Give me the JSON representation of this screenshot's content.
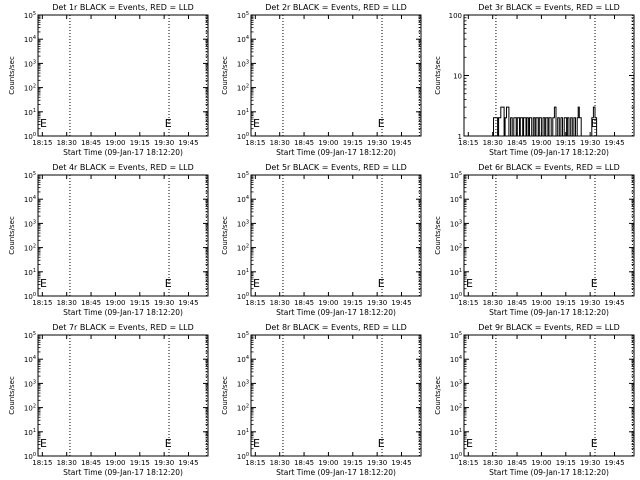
{
  "chart_data": [
    {
      "type": "line",
      "title": "Det 1r BLACK = Events, RED = LLD",
      "xlabel": "Start Time (09-Jan-17 18:12:20)",
      "ylabel": "Counts/sec",
      "yscale": "log",
      "xlim": [
        "18:12:20",
        "19:57:00"
      ],
      "ylim": [
        1,
        100000
      ],
      "x_ticks": [
        "18:15",
        "18:30",
        "18:45",
        "19:00",
        "19:15",
        "19:30",
        "19:45"
      ],
      "y_ticks": [
        "10^0",
        "10^1",
        "10^2",
        "10^3",
        "10^4",
        "10^5"
      ],
      "markers": [
        "18:12:20",
        "18:32:00",
        "19:33:00",
        "19:56:00"
      ],
      "annotations": [
        {
          "x": "19:32:30",
          "text": "E"
        },
        {
          "x": "18:12:40",
          "text": "E"
        }
      ],
      "series": []
    },
    {
      "type": "line",
      "title": "Det 2r BLACK = Events, RED = LLD",
      "xlabel": "Start Time (09-Jan-17 18:12:20)",
      "ylabel": "Counts/sec",
      "yscale": "log",
      "xlim": [
        "18:12:20",
        "19:57:00"
      ],
      "ylim": [
        1,
        100000
      ],
      "x_ticks": [
        "18:15",
        "18:30",
        "18:45",
        "19:00",
        "19:15",
        "19:30",
        "19:45"
      ],
      "y_ticks": [
        "10^0",
        "10^1",
        "10^2",
        "10^3",
        "10^4",
        "10^5"
      ],
      "markers": [
        "18:12:20",
        "18:32:00",
        "19:33:00",
        "19:56:00"
      ],
      "annotations": [
        {
          "x": "19:32:30",
          "text": "E"
        },
        {
          "x": "18:12:40",
          "text": "E"
        }
      ],
      "series": []
    },
    {
      "type": "line",
      "title": "Det 3r BLACK = Events, RED = LLD",
      "xlabel": "Start Time (09-Jan-17 18:12:20)",
      "ylabel": "Counts/sec",
      "yscale": "log",
      "xlim": [
        "18:12:20",
        "19:57:00"
      ],
      "ylim": [
        1,
        100
      ],
      "x_ticks": [
        "18:15",
        "18:30",
        "18:45",
        "19:00",
        "19:15",
        "19:30",
        "19:45"
      ],
      "y_ticks": [
        "1",
        "10",
        "100"
      ],
      "markers": [
        "18:12:20",
        "18:32:00",
        "19:33:00",
        "19:56:00"
      ],
      "annotations": [
        {
          "x": "19:32:30",
          "text": "E"
        }
      ],
      "series": [
        {
          "color": "#000000",
          "points": [
            [
              "18:30:30",
              1
            ],
            [
              "18:30:30",
              2
            ],
            [
              "18:33:00",
              2
            ],
            [
              "18:33:00",
              1
            ],
            [
              "18:33:40",
              1
            ],
            [
              "18:33:40",
              2
            ],
            [
              "18:35:00",
              2
            ],
            [
              "18:35:00",
              3
            ],
            [
              "18:37:00",
              3
            ],
            [
              "18:37:00",
              1
            ],
            [
              "18:37:40",
              1
            ],
            [
              "18:37:40",
              2
            ],
            [
              "18:38:30",
              2
            ],
            [
              "18:38:30",
              3
            ],
            [
              "18:40:00",
              3
            ],
            [
              "18:40:00",
              1
            ],
            [
              "18:41:00",
              1
            ],
            [
              "18:41:00",
              2
            ],
            [
              "18:42:00",
              2
            ],
            [
              "18:42:00",
              1
            ],
            [
              "18:43:00",
              1
            ],
            [
              "18:43:00",
              2
            ],
            [
              "18:44:30",
              2
            ],
            [
              "18:44:30",
              1
            ],
            [
              "18:45:10",
              1
            ],
            [
              "18:45:10",
              2
            ],
            [
              "18:46:30",
              2
            ],
            [
              "18:46:30",
              1
            ],
            [
              "18:47:00",
              1
            ],
            [
              "18:47:00",
              2
            ],
            [
              "18:48:30",
              2
            ],
            [
              "18:48:30",
              1
            ],
            [
              "18:49:00",
              1
            ],
            [
              "18:49:00",
              2
            ],
            [
              "18:50:30",
              2
            ],
            [
              "18:50:30",
              1
            ],
            [
              "18:51:00",
              1
            ],
            [
              "18:51:00",
              2
            ],
            [
              "18:52:00",
              2
            ],
            [
              "18:52:00",
              1
            ],
            [
              "18:52:40",
              1
            ],
            [
              "18:52:40",
              2
            ],
            [
              "18:54:00",
              2
            ],
            [
              "18:54:00",
              1
            ],
            [
              "18:55:00",
              1
            ],
            [
              "18:55:00",
              2
            ],
            [
              "18:56:00",
              2
            ],
            [
              "18:56:00",
              1
            ],
            [
              "18:56:40",
              1
            ],
            [
              "18:56:40",
              2
            ],
            [
              "18:58:00",
              2
            ],
            [
              "18:58:00",
              1
            ],
            [
              "18:58:40",
              1
            ],
            [
              "18:58:40",
              2
            ],
            [
              "19:00:00",
              2
            ],
            [
              "19:00:00",
              1
            ],
            [
              "19:01:00",
              1
            ],
            [
              "19:01:00",
              2
            ],
            [
              "19:02:00",
              2
            ],
            [
              "19:02:00",
              1
            ],
            [
              "19:02:40",
              1
            ],
            [
              "19:02:40",
              2
            ],
            [
              "19:04:00",
              2
            ],
            [
              "19:04:00",
              1
            ],
            [
              "19:04:40",
              1
            ],
            [
              "19:04:40",
              2
            ],
            [
              "19:06:00",
              2
            ],
            [
              "19:06:00",
              1
            ],
            [
              "19:07:00",
              1
            ],
            [
              "19:07:00",
              2
            ],
            [
              "19:08:00",
              2
            ],
            [
              "19:08:00",
              3
            ],
            [
              "19:09:00",
              3
            ],
            [
              "19:09:00",
              1
            ],
            [
              "19:10:00",
              1
            ],
            [
              "19:10:00",
              2
            ],
            [
              "19:11:00",
              2
            ],
            [
              "19:11:00",
              1
            ],
            [
              "19:12:00",
              1
            ],
            [
              "19:12:00",
              2
            ],
            [
              "19:13:00",
              2
            ],
            [
              "19:13:00",
              1
            ],
            [
              "19:14:00",
              1
            ],
            [
              "19:14:00",
              2
            ],
            [
              "19:15:30",
              2
            ],
            [
              "19:15:30",
              1
            ],
            [
              "19:16:00",
              1
            ],
            [
              "19:16:00",
              2
            ],
            [
              "19:17:00",
              2
            ],
            [
              "19:17:00",
              1
            ],
            [
              "19:18:00",
              1
            ],
            [
              "19:18:00",
              2
            ],
            [
              "19:19:00",
              2
            ],
            [
              "19:19:00",
              1
            ],
            [
              "19:20:00",
              1
            ],
            [
              "19:20:00",
              2
            ],
            [
              "19:21:00",
              2
            ],
            [
              "19:21:00",
              1
            ],
            [
              "19:22:00",
              1
            ],
            [
              "19:22:00",
              2
            ],
            [
              "19:22:40",
              2
            ],
            [
              "19:22:40",
              3
            ],
            [
              "19:23:20",
              3
            ],
            [
              "19:23:20",
              2
            ],
            [
              "19:24:30",
              2
            ],
            [
              "19:24:30",
              1
            ],
            [
              "19:31:00",
              1
            ],
            [
              "19:31:00",
              2
            ],
            [
              "19:32:00",
              2
            ],
            [
              "19:32:00",
              3
            ],
            [
              "19:33:00",
              3
            ],
            [
              "19:33:00",
              2
            ],
            [
              "19:34:00",
              2
            ],
            [
              "19:34:00",
              1
            ]
          ]
        }
      ]
    },
    {
      "type": "line",
      "title": "Det 4r BLACK = Events, RED = LLD",
      "xlabel": "Start Time (09-Jan-17 18:12:20)",
      "ylabel": "Counts/sec",
      "yscale": "log",
      "xlim": [
        "18:12:20",
        "19:57:00"
      ],
      "ylim": [
        1,
        100000
      ],
      "x_ticks": [
        "18:15",
        "18:30",
        "18:45",
        "19:00",
        "19:15",
        "19:30",
        "19:45"
      ],
      "y_ticks": [
        "10^0",
        "10^1",
        "10^2",
        "10^3",
        "10^4",
        "10^5"
      ],
      "markers": [
        "18:12:20",
        "18:32:00",
        "19:33:00",
        "19:56:00"
      ],
      "annotations": [
        {
          "x": "19:32:30",
          "text": "E"
        },
        {
          "x": "18:12:40",
          "text": "E"
        }
      ],
      "series": []
    },
    {
      "type": "line",
      "title": "Det 5r BLACK = Events, RED = LLD",
      "xlabel": "Start Time (09-Jan-17 18:12:20)",
      "ylabel": "Counts/sec",
      "yscale": "log",
      "xlim": [
        "18:12:20",
        "19:57:00"
      ],
      "ylim": [
        1,
        100000
      ],
      "x_ticks": [
        "18:15",
        "18:30",
        "18:45",
        "19:00",
        "19:15",
        "19:30",
        "19:45"
      ],
      "y_ticks": [
        "10^0",
        "10^1",
        "10^2",
        "10^3",
        "10^4",
        "10^5"
      ],
      "markers": [
        "18:12:20",
        "18:32:00",
        "19:33:00",
        "19:56:00"
      ],
      "annotations": [
        {
          "x": "19:32:30",
          "text": "E"
        },
        {
          "x": "18:12:40",
          "text": "E"
        }
      ],
      "series": []
    },
    {
      "type": "line",
      "title": "Det 6r BLACK = Events, RED = LLD",
      "xlabel": "Start Time (09-Jan-17 18:12:20)",
      "ylabel": "Counts/sec",
      "yscale": "log",
      "xlim": [
        "18:12:20",
        "19:57:00"
      ],
      "ylim": [
        1,
        100000
      ],
      "x_ticks": [
        "18:15",
        "18:30",
        "18:45",
        "19:00",
        "19:15",
        "19:30",
        "19:45"
      ],
      "y_ticks": [
        "10^0",
        "10^1",
        "10^2",
        "10^3",
        "10^4",
        "10^5"
      ],
      "markers": [
        "18:12:20",
        "18:32:00",
        "19:33:00",
        "19:56:00"
      ],
      "annotations": [
        {
          "x": "19:32:30",
          "text": "E"
        },
        {
          "x": "18:12:40",
          "text": "E"
        }
      ],
      "series": []
    },
    {
      "type": "line",
      "title": "Det 7r BLACK = Events, RED = LLD",
      "xlabel": "Start Time (09-Jan-17 18:12:20)",
      "ylabel": "Counts/sec",
      "yscale": "log",
      "xlim": [
        "18:12:20",
        "19:57:00"
      ],
      "ylim": [
        1,
        100000
      ],
      "x_ticks": [
        "18:15",
        "18:30",
        "18:45",
        "19:00",
        "19:15",
        "19:30",
        "19:45"
      ],
      "y_ticks": [
        "10^0",
        "10^1",
        "10^2",
        "10^3",
        "10^4",
        "10^5"
      ],
      "markers": [
        "18:12:20",
        "18:32:00",
        "19:33:00",
        "19:56:00"
      ],
      "annotations": [
        {
          "x": "19:32:30",
          "text": "E"
        },
        {
          "x": "18:12:40",
          "text": "E"
        }
      ],
      "series": []
    },
    {
      "type": "line",
      "title": "Det 8r BLACK = Events, RED = LLD",
      "xlabel": "Start Time (09-Jan-17 18:12:20)",
      "ylabel": "Counts/sec",
      "yscale": "log",
      "xlim": [
        "18:12:20",
        "19:57:00"
      ],
      "ylim": [
        1,
        100000
      ],
      "x_ticks": [
        "18:15",
        "18:30",
        "18:45",
        "19:00",
        "19:15",
        "19:30",
        "19:45"
      ],
      "y_ticks": [
        "10^0",
        "10^1",
        "10^2",
        "10^3",
        "10^4",
        "10^5"
      ],
      "markers": [
        "18:12:20",
        "18:32:00",
        "19:33:00",
        "19:56:00"
      ],
      "annotations": [
        {
          "x": "19:32:30",
          "text": "E"
        },
        {
          "x": "18:12:40",
          "text": "E"
        }
      ],
      "series": []
    },
    {
      "type": "line",
      "title": "Det 9r BLACK = Events, RED = LLD",
      "xlabel": "Start Time (09-Jan-17 18:12:20)",
      "ylabel": "Counts/sec",
      "yscale": "log",
      "xlim": [
        "18:12:20",
        "19:57:00"
      ],
      "ylim": [
        1,
        100000
      ],
      "x_ticks": [
        "18:15",
        "18:30",
        "18:45",
        "19:00",
        "19:15",
        "19:30",
        "19:45"
      ],
      "y_ticks": [
        "10^0",
        "10^1",
        "10^2",
        "10^3",
        "10^4",
        "10^5"
      ],
      "markers": [
        "18:12:20",
        "18:32:00",
        "19:33:00",
        "19:56:00"
      ],
      "annotations": [
        {
          "x": "19:32:30",
          "text": "E"
        },
        {
          "x": "18:12:40",
          "text": "E"
        }
      ],
      "series": []
    }
  ]
}
